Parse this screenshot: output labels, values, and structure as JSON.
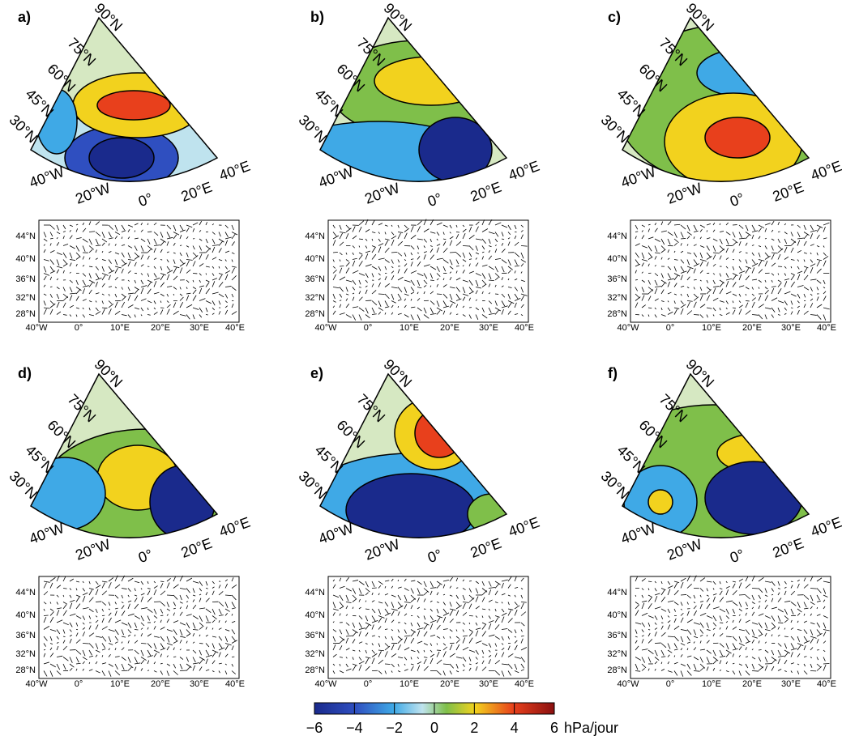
{
  "panels": [
    {
      "label": "a)"
    },
    {
      "label": "b)"
    },
    {
      "label": "c)"
    },
    {
      "label": "d)"
    },
    {
      "label": "e)"
    },
    {
      "label": "f)"
    }
  ],
  "sector_map": {
    "lat_labels": [
      "90°N",
      "75°N",
      "60°N",
      "45°N",
      "30°N"
    ],
    "lon_labels": [
      "40°W",
      "20°W",
      "0°",
      "20°E",
      "40°E"
    ]
  },
  "wind_map": {
    "lat_ticks": [
      "44°N",
      "40°N",
      "36°N",
      "32°N",
      "28°N"
    ],
    "lon_ticks": [
      "40°W",
      "0°",
      "10°E",
      "20°E",
      "30°E",
      "40°E"
    ]
  },
  "colorbar": {
    "lim": [
      -6,
      6
    ],
    "ticks": [
      {
        "value": -6,
        "label": "−6"
      },
      {
        "value": -4,
        "label": "−4"
      },
      {
        "value": -2,
        "label": "−2"
      },
      0,
      2,
      4,
      6
    ],
    "unit": "hPa/jour"
  }
}
